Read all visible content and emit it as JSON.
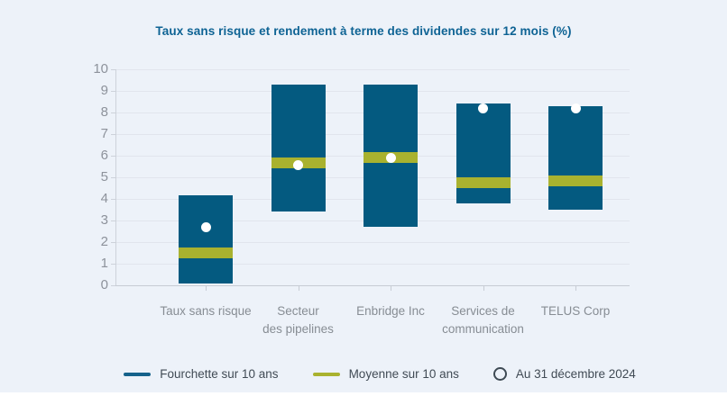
{
  "page": {
    "title": "Taux sans risque et rendement à terme des dividendes sur 12 mois (%)"
  },
  "colors": {
    "background": "#edf2f9",
    "bar_blue": "#045a80",
    "mean_olive": "#a9b22f",
    "dot_white": "#ffffff",
    "title_blue": "#0e6394",
    "axis_text_gray": "#8d929b",
    "legend_text_gray": "#414b55",
    "gridline_gray": "#e1e5ed"
  },
  "legend": {
    "items": [
      {
        "label": "Fourchette sur 10 ans",
        "marker": "line-swatch",
        "color": "#15628b"
      },
      {
        "label": "Moyenne sur 10 ans",
        "marker": "line-swatch",
        "color": "#a9b22f"
      },
      {
        "label": "Au 31 décembre 2024",
        "marker": "circle-outline",
        "color": "#3e4a54"
      }
    ]
  },
  "chart_data": {
    "type": "bar",
    "subtype": "floating-range-with-mean-band-and-point",
    "title": "Taux sans risque et rendement à terme des dividendes sur 12 mois (%)",
    "categories": [
      "Taux sans risque",
      "Secteur des pipelines",
      "Enbridge Inc",
      "Services de communication",
      "TELUS Corp"
    ],
    "category_lines": [
      [
        "Taux sans risque"
      ],
      [
        "Secteur",
        "des pipelines"
      ],
      [
        "Enbridge Inc"
      ],
      [
        "Services de",
        "communication"
      ],
      [
        "TELUS Corp"
      ]
    ],
    "series": [
      {
        "name": "Fourchette sur 10 ans",
        "role": "range",
        "low": [
          0.1,
          3.4,
          2.7,
          3.8,
          3.5
        ],
        "high": [
          4.15,
          9.3,
          9.3,
          8.4,
          8.3
        ]
      },
      {
        "name": "Moyenne sur 10 ans",
        "role": "mean-band",
        "values": [
          1.5,
          5.65,
          5.9,
          4.75,
          4.85
        ],
        "band_half_height": 0.25
      },
      {
        "name": "Au 31 décembre 2024",
        "role": "point",
        "values": [
          2.7,
          5.55,
          5.9,
          8.2,
          8.2
        ]
      }
    ],
    "xlabel": "",
    "ylabel": "",
    "ylim": [
      0,
      10
    ],
    "yticks": [
      0,
      1,
      2,
      3,
      4,
      5,
      6,
      7,
      8,
      9,
      10
    ],
    "grid": true,
    "legend_position": "bottom"
  }
}
